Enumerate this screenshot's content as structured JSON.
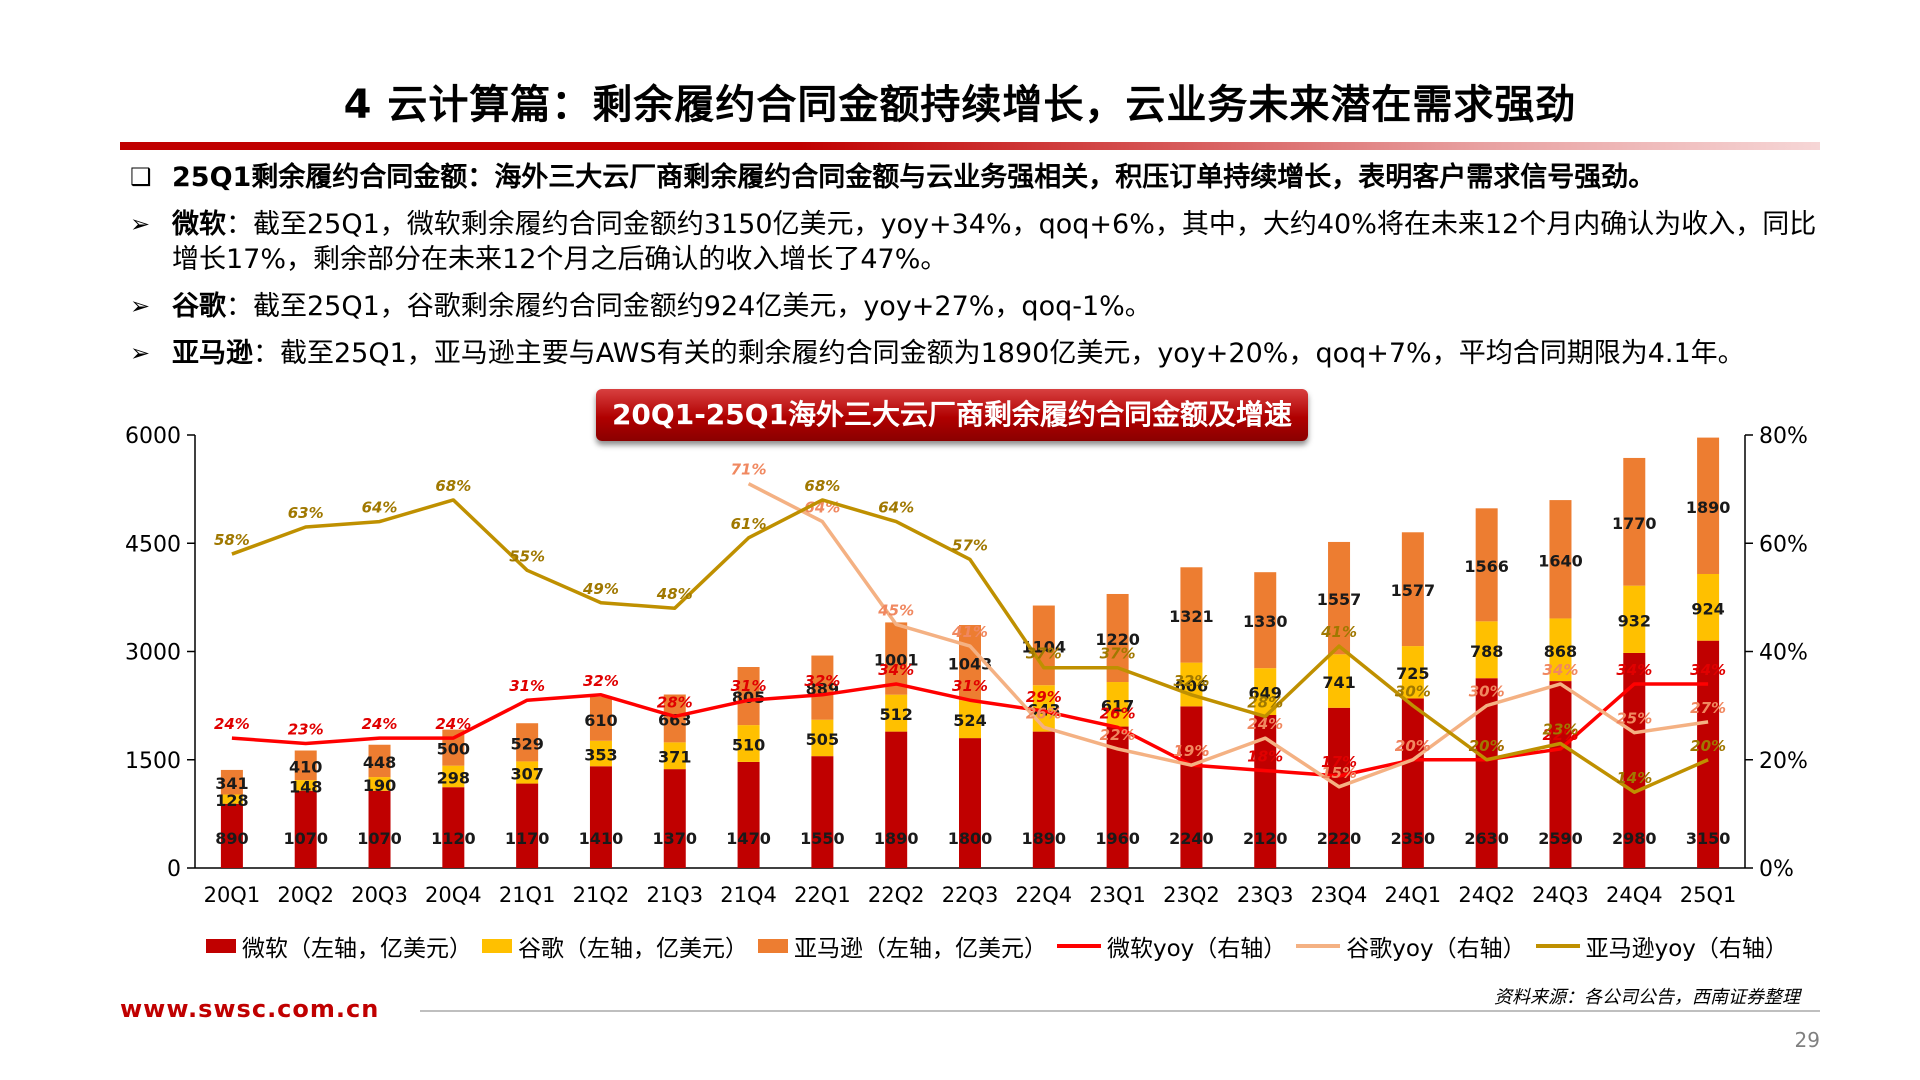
{
  "header": {
    "title": "4 云计算篇：剩余履约合同金额持续增长，云业务未来潜在需求强劲"
  },
  "bullets": [
    {
      "marker": "❑",
      "bold": "25Q1剩余履约合同金额：",
      "text": "海外三大云厂商剩余履约合同金额与云业务强相关，积压订单持续增长，表明客户需求信号强劲。",
      "all_bold": true
    },
    {
      "marker": "➢",
      "bold": "微软",
      "text": "：截至25Q1，微软剩余履约合同金额约3150亿美元，yoy+34%，qoq+6%，其中，大约40%将在未来12个月内确认为收入，同比增长17%，剩余部分在未来12个月之后确认的收入增长了47%。"
    },
    {
      "marker": "➢",
      "bold": "谷歌",
      "text": "：截至25Q1，谷歌剩余履约合同金额约924亿美元，yoy+27%，qoq-1%。"
    },
    {
      "marker": "➢",
      "bold": "亚马逊",
      "text": "：截至25Q1，亚马逊主要与AWS有关的剩余履约合同金额为1890亿美元，yoy+20%，qoq+7%，平均合同期限为4.1年。"
    }
  ],
  "chart_data": {
    "type": "bar",
    "title": "20Q1-25Q1海外三大云厂商剩余履约合同金额及增速",
    "stacked": true,
    "categories": [
      "20Q1",
      "20Q2",
      "20Q3",
      "20Q4",
      "21Q1",
      "21Q2",
      "21Q3",
      "21Q4",
      "22Q1",
      "22Q2",
      "22Q3",
      "22Q4",
      "23Q1",
      "23Q2",
      "23Q3",
      "23Q4",
      "24Q1",
      "24Q2",
      "24Q3",
      "24Q4",
      "25Q1"
    ],
    "left_axis": {
      "min": 0,
      "max": 6000,
      "ticks": [
        "0",
        "1500",
        "3000",
        "4500",
        "6000"
      ]
    },
    "right_axis": {
      "min": 0,
      "max": 80,
      "ticks": [
        "0%",
        "20%",
        "40%",
        "60%",
        "80%"
      ]
    },
    "bar_series": [
      {
        "name": "微软（左轴，亿美元）",
        "color": "#c00000",
        "values": [
          890,
          1070,
          1070,
          1120,
          1170,
          1410,
          1370,
          1470,
          1550,
          1890,
          1800,
          1890,
          1960,
          2240,
          2120,
          2220,
          2350,
          2630,
          2590,
          2980,
          3150
        ],
        "labels": [
          "890",
          "1070",
          "1070",
          "1120",
          "1170",
          "1410",
          "1370",
          "1470",
          "1550",
          "1890",
          "1800",
          "1890",
          "1960",
          "2240",
          "2120",
          "2220",
          "2350",
          "2630",
          "2590",
          "2980",
          "3150"
        ]
      },
      {
        "name": "谷歌（左轴，亿美元）",
        "color": "#ffc000",
        "values": [
          128,
          148,
          190,
          298,
          307,
          353,
          371,
          510,
          505,
          512,
          524,
          643,
          617,
          606,
          649,
          741,
          725,
          788,
          868,
          932,
          924
        ],
        "labels": [
          "128",
          "148",
          "190",
          "298",
          "307",
          "353",
          "371",
          "510",
          "505",
          "512",
          "524",
          "643",
          "617",
          "606",
          "649",
          "741",
          "725",
          "788",
          "868",
          "932",
          "924"
        ]
      },
      {
        "name": "亚马逊（左轴，亿美元）",
        "color": "#ed7d31",
        "values": [
          341,
          410,
          448,
          500,
          529,
          610,
          663,
          805,
          889,
          1001,
          1043,
          1104,
          1220,
          1321,
          1330,
          1557,
          1577,
          1566,
          1640,
          1770,
          1890
        ],
        "labels": [
          "341",
          "410",
          "448",
          "500",
          "529",
          "610",
          "663",
          "805",
          "889",
          "1001",
          "1043",
          "1104",
          "1220",
          "1321",
          "1330",
          "1557",
          "1577",
          "1566",
          "1640",
          "1770",
          "1890"
        ]
      }
    ],
    "line_series": [
      {
        "name": "微软yoy（右轴）",
        "color": "#ff0000",
        "label_color": "#e00000",
        "values": [
          24,
          23,
          24,
          24,
          31,
          32,
          28,
          31,
          32,
          34,
          31,
          29,
          26,
          19,
          18,
          17,
          20,
          20,
          22,
          34,
          34
        ],
        "labels": [
          "24%",
          "23%",
          "24%",
          "24%",
          "31%",
          "32%",
          "28%",
          "31%",
          "32%",
          "34%",
          "31%",
          "29%",
          "26%",
          "19%",
          "18%",
          "17%",
          "20%",
          "20%",
          "22%",
          "34%",
          "34%"
        ]
      },
      {
        "name": "谷歌yoy（右轴）",
        "color": "#f4b183",
        "label_color": "#f08860",
        "values": [
          null,
          null,
          null,
          null,
          null,
          null,
          null,
          71,
          64,
          45,
          41,
          26,
          22,
          19,
          24,
          15,
          20,
          30,
          34,
          25,
          27
        ],
        "labels": [
          "",
          "",
          "",
          "",
          "",
          "",
          "",
          "71%",
          "64%",
          "45%",
          "41%",
          "26%",
          "22%",
          "19%",
          "24%",
          "15%",
          "20%",
          "30%",
          "34%",
          "25%",
          "27%"
        ]
      },
      {
        "name": "亚马逊yoy（右轴）",
        "color": "#bf9000",
        "label_color": "#a07800",
        "values": [
          58,
          63,
          64,
          68,
          55,
          49,
          48,
          61,
          68,
          64,
          57,
          37,
          37,
          32,
          28,
          41,
          30,
          20,
          23,
          14,
          20
        ],
        "labels": [
          "58%",
          "63%",
          "64%",
          "68%",
          "55%",
          "49%",
          "48%",
          "61%",
          "68%",
          "64%",
          "57%",
          "37%",
          "37%",
          "32%",
          "28%",
          "41%",
          "30%",
          "20%",
          "23%",
          "14%",
          "20%"
        ]
      }
    ],
    "legend_position": "bottom",
    "grid": false
  },
  "footer": {
    "source": "资料来源：各公司公告，西南证券整理",
    "website": "www.swsc.com.cn",
    "page_number": "29"
  }
}
